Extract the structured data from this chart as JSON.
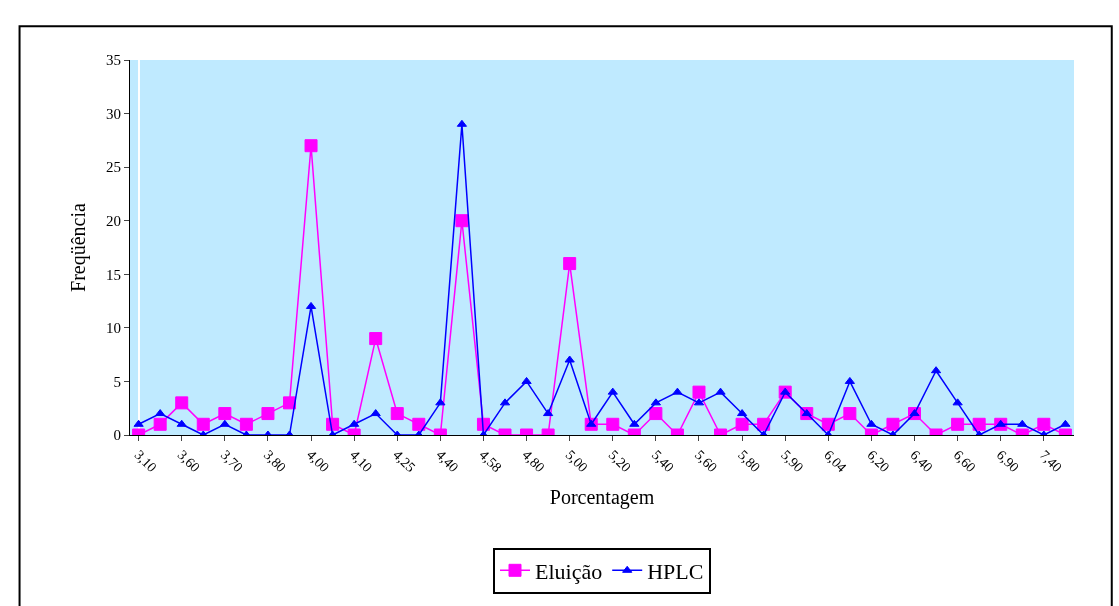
{
  "chart_data": {
    "type": "line",
    "xlabel": "Porcentagem",
    "ylabel": "Freqüência",
    "ylim": [
      0,
      35
    ],
    "yticks": [
      0,
      5,
      10,
      15,
      20,
      25,
      30,
      35
    ],
    "grid": false,
    "legend": "bottom",
    "categories": [
      "3,10",
      null,
      "3,60",
      null,
      "3,70",
      null,
      "3,80",
      null,
      "4,00",
      null,
      "4,10",
      null,
      "4,25",
      null,
      "4,40",
      null,
      "4,58",
      null,
      "4,80",
      null,
      "5,00",
      null,
      "5,20",
      null,
      "5,40",
      null,
      "5,60",
      null,
      "5,80",
      null,
      "5,90",
      null,
      "6,04",
      null,
      "6,20",
      null,
      "6,40",
      null,
      "6,60",
      null,
      "6,90",
      null,
      "7,40",
      null
    ],
    "series": [
      {
        "name": "Eluição",
        "color": "#ff00ff",
        "marker": "square",
        "values": [
          0,
          1,
          3,
          1,
          2,
          1,
          2,
          3,
          27,
          1,
          0,
          9,
          2,
          1,
          0,
          20,
          1,
          0,
          0,
          0,
          16,
          1,
          1,
          0,
          2,
          0,
          4,
          0,
          1,
          1,
          4,
          2,
          1,
          2,
          0,
          1,
          2,
          0,
          1,
          1,
          1,
          0,
          1,
          0
        ]
      },
      {
        "name": "HPLC",
        "color": "#0000ff",
        "marker": "triangle",
        "values": [
          1,
          2,
          1,
          0,
          1,
          0,
          0,
          0,
          12,
          0,
          1,
          2,
          0,
          0,
          3,
          29,
          0,
          3,
          5,
          2,
          7,
          1,
          4,
          1,
          3,
          4,
          3,
          4,
          2,
          0,
          4,
          2,
          0,
          5,
          1,
          0,
          2,
          6,
          3,
          0,
          1,
          1,
          0,
          1
        ]
      }
    ]
  }
}
